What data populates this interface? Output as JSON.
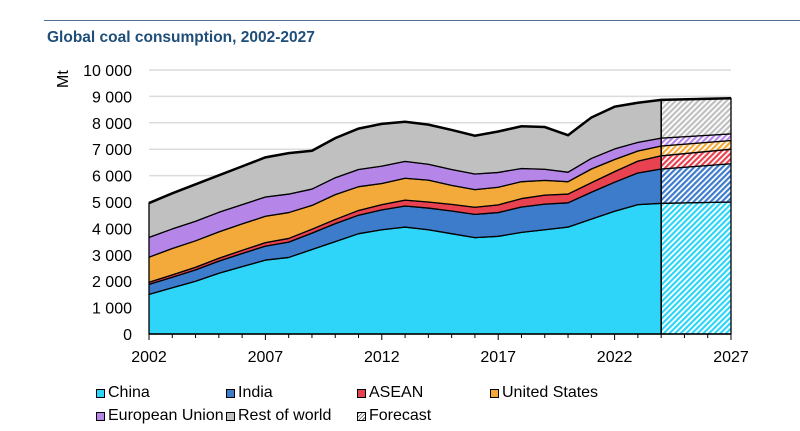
{
  "chart_data": {
    "type": "area",
    "stacked": true,
    "title": "Global coal consumption, 2002-2027",
    "xlabel": "",
    "ylabel": "Mt",
    "ylim": [
      0,
      10000
    ],
    "xlim": [
      2002,
      2027
    ],
    "grid": true,
    "forecast_from": 2024,
    "x": [
      2002,
      2003,
      2004,
      2005,
      2006,
      2007,
      2008,
      2009,
      2010,
      2011,
      2012,
      2013,
      2014,
      2015,
      2016,
      2017,
      2018,
      2019,
      2020,
      2021,
      2022,
      2023,
      2024,
      2027
    ],
    "y_ticks": [
      "0",
      "1 000",
      "2 000",
      "3 000",
      "4 000",
      "5 000",
      "6 000",
      "7 000",
      "8 000",
      "9 000",
      "10 000"
    ],
    "x_ticks": [
      "2002",
      "2007",
      "2012",
      "2017",
      "2022",
      "2027"
    ],
    "series": [
      {
        "name": "China",
        "color": "#2ed5f8",
        "values": [
          1500,
          1750,
          2000,
          2300,
          2550,
          2800,
          2900,
          3200,
          3500,
          3800,
          3950,
          4050,
          3950,
          3800,
          3650,
          3700,
          3850,
          3950,
          4050,
          4350,
          4650,
          4900,
          4950,
          5000
        ]
      },
      {
        "name": "India",
        "color": "#3d7bcb",
        "values": [
          380,
          400,
          430,
          460,
          500,
          530,
          580,
          620,
          680,
          700,
          750,
          800,
          820,
          860,
          880,
          900,
          960,
          970,
          920,
          1020,
          1100,
          1200,
          1300,
          1450
        ]
      },
      {
        "name": "ASEAN",
        "color": "#e8414f",
        "values": [
          80,
          90,
          100,
          110,
          120,
          130,
          140,
          150,
          160,
          180,
          200,
          220,
          230,
          250,
          270,
          290,
          320,
          340,
          330,
          360,
          400,
          450,
          500,
          550
        ]
      },
      {
        "name": "United States",
        "color": "#f4a93b",
        "values": [
          950,
          1000,
          1000,
          1000,
          1000,
          1000,
          980,
          900,
          940,
          900,
          800,
          830,
          830,
          720,
          670,
          670,
          640,
          560,
          470,
          520,
          460,
          380,
          370,
          330
        ]
      },
      {
        "name": "European Union",
        "color": "#b586e8",
        "values": [
          750,
          740,
          740,
          740,
          730,
          730,
          700,
          620,
          640,
          650,
          660,
          640,
          600,
          600,
          590,
          560,
          500,
          420,
          360,
          400,
          400,
          330,
          300,
          250
        ]
      },
      {
        "name": "Rest of world",
        "color": "#c0c0c0",
        "values": [
          1300,
          1350,
          1400,
          1400,
          1450,
          1500,
          1550,
          1450,
          1500,
          1550,
          1600,
          1500,
          1500,
          1500,
          1450,
          1550,
          1600,
          1600,
          1400,
          1550,
          1600,
          1500,
          1450,
          1350
        ]
      }
    ],
    "legend": {
      "placement": "bottom",
      "entries": [
        "China",
        "India",
        "ASEAN",
        "United States",
        "European Union",
        "Rest of world",
        "Forecast"
      ]
    }
  }
}
